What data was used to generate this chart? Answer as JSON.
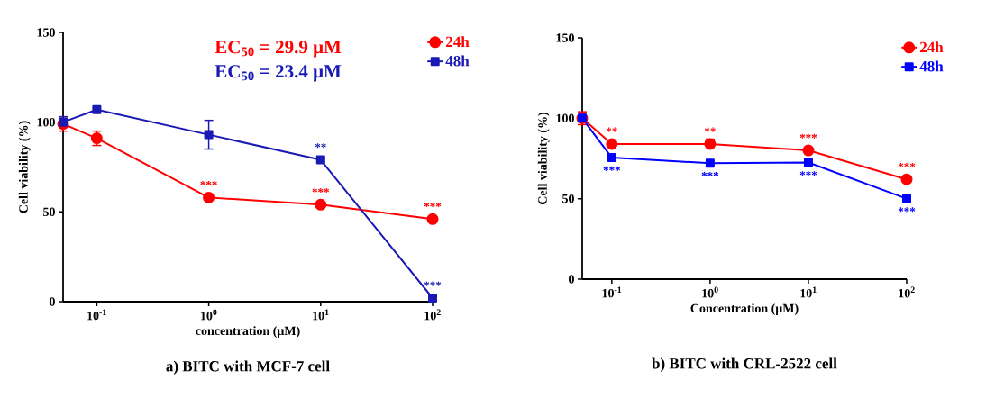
{
  "chart_data": [
    {
      "type": "line",
      "title": "a) BITC with MCF-7 cell",
      "xlabel": "concentration (μM)",
      "ylabel": "Cell viability (%)",
      "log": "x",
      "xlim": [
        0.05,
        100
      ],
      "xticks": [
        {
          "value": 0.1,
          "label": "10$^{-1}$"
        },
        {
          "value": 1,
          "label": "10$^{0}$"
        },
        {
          "value": 10,
          "label": "10$^{1}$"
        },
        {
          "value": 100,
          "label": "10$^{2}$"
        }
      ],
      "ylim": [
        0,
        150
      ],
      "yticks": [
        0,
        50,
        100,
        150
      ],
      "legend": "top right",
      "x": [
        0.05,
        0.1,
        1,
        10,
        100
      ],
      "series": [
        {
          "name": "24h",
          "color": "#ff0000",
          "marker": "circle",
          "values": [
            99,
            91,
            58,
            54,
            46
          ],
          "errors": [
            4,
            4,
            null,
            null,
            null
          ]
        },
        {
          "name": "48h",
          "color": "#1a1ab4",
          "marker": "square",
          "values": [
            100,
            107,
            93,
            79,
            2
          ],
          "errors": [
            3,
            null,
            8,
            null,
            null
          ]
        }
      ],
      "annotations": [
        "EC$_{50}$ = 29.9 μM",
        "EC$_{50}$ = 23.4 μM",
        {
          "text": "***",
          "x": 1,
          "y": 58
        },
        {
          "text": "***",
          "x": 10,
          "y": 54
        },
        {
          "text": "***",
          "x": 100,
          "y": 46
        },
        {
          "text": "**",
          "x": 10,
          "y": 79
        },
        {
          "text": "***",
          "x": 100,
          "y": 2
        }
      ]
    },
    {
      "type": "line",
      "title": "b) BITC with CRL-2522 cell",
      "xlabel": "Concentration (μM)",
      "ylabel": "Cell viability (%)",
      "log": "x",
      "xlim": [
        0.05,
        100
      ],
      "xticks": [
        {
          "value": 0.1,
          "label": "10$^{-1}$"
        },
        {
          "value": 1,
          "label": "10$^{0}$"
        },
        {
          "value": 10,
          "label": "10$^{1}$"
        },
        {
          "value": 100,
          "label": "10$^{2}$"
        }
      ],
      "ylim": [
        0,
        150
      ],
      "yticks": [
        0,
        50,
        100,
        150
      ],
      "legend": "top right",
      "x": [
        0.05,
        0.1,
        1,
        10,
        100
      ],
      "series": [
        {
          "name": "24h",
          "color": "#ff0000",
          "marker": "circle",
          "values": [
            100,
            84,
            84,
            80,
            62
          ],
          "errors": [
            4,
            null,
            3,
            null,
            null
          ]
        },
        {
          "name": "48h",
          "color": "#0000ff",
          "marker": "square",
          "values": [
            100,
            75.5,
            72,
            72.5,
            50
          ],
          "errors": [
            2,
            null,
            null,
            null,
            null
          ]
        }
      ],
      "annotations": [
        {
          "text": "**",
          "x": 0.1,
          "y": 84
        },
        {
          "text": "**",
          "x": 1,
          "y": 84
        },
        {
          "text": "***",
          "x": 10,
          "y": 80
        },
        {
          "text": "***",
          "x": 100,
          "y": 62
        },
        {
          "text": "***",
          "x": 0.1,
          "y": 75.5
        },
        {
          "text": "***",
          "x": 1,
          "y": 72
        },
        {
          "text": "***",
          "x": 10,
          "y": 72.5
        },
        {
          "text": "***",
          "x": 100,
          "y": 50
        }
      ]
    }
  ]
}
